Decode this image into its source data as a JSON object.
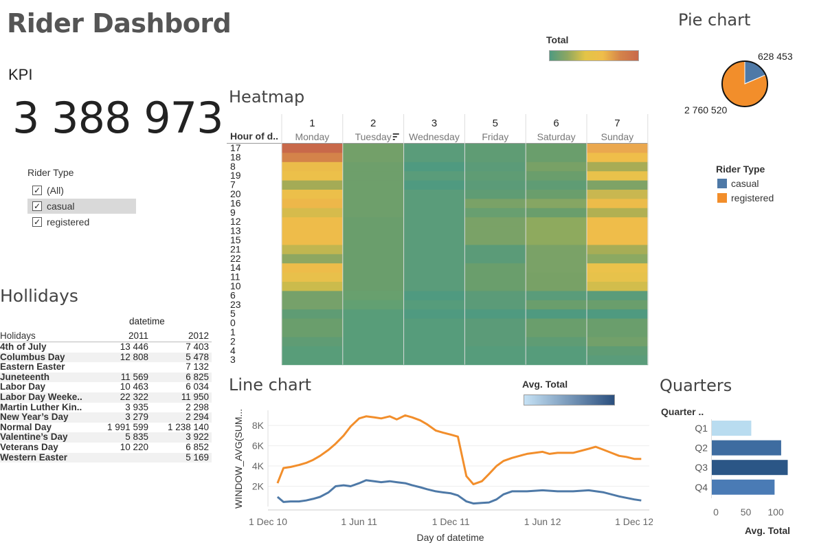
{
  "dashboard": {
    "title": "Rider Dashbord"
  },
  "kpi": {
    "label": "KPI",
    "value": "3 388 973"
  },
  "rider_filter": {
    "title": "Rider Type",
    "items": [
      {
        "label": "(All)",
        "checked": true,
        "highlighted": false
      },
      {
        "label": "casual",
        "checked": true,
        "highlighted": true
      },
      {
        "label": "registered",
        "checked": true,
        "highlighted": false
      }
    ]
  },
  "holidays": {
    "title": "Hollidays",
    "col_group": "datetime",
    "row_header": "Holidays",
    "years": [
      "2011",
      "2012"
    ],
    "rows": [
      {
        "name": "4th of July",
        "v2011": "13 446",
        "v2012": "7 403"
      },
      {
        "name": "Columbus Day",
        "v2011": "12 808",
        "v2012": "5 478"
      },
      {
        "name": "Eastern Easter",
        "v2011": "",
        "v2012": "7 132"
      },
      {
        "name": "Juneteenth",
        "v2011": "11 569",
        "v2012": "6 825"
      },
      {
        "name": "Labor Day",
        "v2011": "10 463",
        "v2012": "6 034"
      },
      {
        "name": "Labor Day Weeke..",
        "v2011": "22 322",
        "v2012": "11 950"
      },
      {
        "name": "Martin Luther Kin..",
        "v2011": "3 935",
        "v2012": "2 298"
      },
      {
        "name": "New Year’s Day",
        "v2011": "3 279",
        "v2012": "2 294"
      },
      {
        "name": "Normal Day",
        "v2011": "1 991 599",
        "v2012": "1 238 140"
      },
      {
        "name": "Valentine’s Day",
        "v2011": "5 835",
        "v2012": "3 922"
      },
      {
        "name": "Veterans Day",
        "v2011": "10 220",
        "v2012": "6 852"
      },
      {
        "name": "Western Easter",
        "v2011": "",
        "v2012": "5 169"
      }
    ]
  },
  "total_legend": {
    "title": "Total"
  },
  "heatmap": {
    "title": "Heatmap",
    "row_header": "Hour of d..",
    "days": [
      {
        "num": "1",
        "name": "Monday"
      },
      {
        "num": "2",
        "name": "Tuesday"
      },
      {
        "num": "3",
        "name": "Wednesday"
      },
      {
        "num": "5",
        "name": "Friday"
      },
      {
        "num": "6",
        "name": "Saturday"
      },
      {
        "num": "7",
        "name": "Sunday"
      }
    ],
    "hours": [
      "17",
      "18",
      "8",
      "19",
      "7",
      "20",
      "16",
      "9",
      "12",
      "13",
      "15",
      "21",
      "22",
      "14",
      "11",
      "10",
      "6",
      "23",
      "5",
      "0",
      "1",
      "2",
      "4",
      "3"
    ],
    "colors": [
      [
        "#c8694a",
        "#73a069",
        "#5a9c7a",
        "#5f9c74",
        "#6a9e6c",
        "#eaa84f"
      ],
      [
        "#d4834a",
        "#73a069",
        "#5a9c7a",
        "#5f9c74",
        "#6a9e6c",
        "#efbe4a"
      ],
      [
        "#ebbc4a",
        "#6e9f6b",
        "#4f9a80",
        "#5b9b78",
        "#78a166",
        "#a8ac55"
      ],
      [
        "#ecc04a",
        "#6e9f6b",
        "#5a9c7a",
        "#5f9c74",
        "#6a9e6c",
        "#e9c24b"
      ],
      [
        "#a4ab56",
        "#6e9f6b",
        "#4f9a80",
        "#5b9b78",
        "#5f9c74",
        "#7ea366"
      ],
      [
        "#ecbf4a",
        "#6e9f6b",
        "#5a9c7a",
        "#5f9c74",
        "#6a9e6c",
        "#c9b750"
      ],
      [
        "#edb74a",
        "#6e9f6b",
        "#5a9c7a",
        "#7aa267",
        "#86a663",
        "#ecbc4a"
      ],
      [
        "#d6bb4c",
        "#6e9f6b",
        "#5a9c7a",
        "#689f70",
        "#6a9e6c",
        "#b1b052"
      ],
      [
        "#eebc4a",
        "#6a9e6c",
        "#5a9c7a",
        "#7aa267",
        "#8eaa5e",
        "#efbd4a"
      ],
      [
        "#eebc4a",
        "#6a9e6c",
        "#5a9c7a",
        "#7aa267",
        "#8eaa5e",
        "#efbd4a"
      ],
      [
        "#eebc4a",
        "#6a9e6c",
        "#5a9c7a",
        "#7aa267",
        "#8eaa5e",
        "#efbd4a"
      ],
      [
        "#c1b650",
        "#6a9e6c",
        "#5a9c7a",
        "#5b9b78",
        "#7aa267",
        "#a7ad56"
      ],
      [
        "#8ea761",
        "#6a9e6c",
        "#5a9c7a",
        "#5b9b78",
        "#7aa267",
        "#8ca962"
      ],
      [
        "#edbc4a",
        "#6a9e6c",
        "#5a9c7a",
        "#6a9e6c",
        "#7aa267",
        "#ebc24b"
      ],
      [
        "#e8c04b",
        "#6a9e6c",
        "#5a9c7a",
        "#6a9e6c",
        "#78a166",
        "#e7c24b"
      ],
      [
        "#cbbb4c",
        "#6a9e6c",
        "#5a9c7a",
        "#6a9e6c",
        "#78a166",
        "#d2bd4c"
      ],
      [
        "#76a16a",
        "#68a06e",
        "#4f9a80",
        "#5b9b78",
        "#5a9c7a",
        "#5a9c7a"
      ],
      [
        "#76a16a",
        "#62a072",
        "#569c7b",
        "#5b9b78",
        "#6a9e6c",
        "#6a9e6c"
      ],
      [
        "#5f9c74",
        "#589d79",
        "#4f9a80",
        "#4f9a80",
        "#4f9a80",
        "#4f9a80"
      ],
      [
        "#6a9e6c",
        "#589d79",
        "#569c7b",
        "#5b9b78",
        "#6a9e6c",
        "#6a9e6c"
      ],
      [
        "#6a9e6c",
        "#589d79",
        "#569c7b",
        "#5b9b78",
        "#6a9e6c",
        "#6a9e6c"
      ],
      [
        "#5f9c74",
        "#589d79",
        "#569c7b",
        "#5b9b78",
        "#5f9c74",
        "#72a06a"
      ],
      [
        "#589d79",
        "#589d79",
        "#569c7b",
        "#569c7b",
        "#569c7b",
        "#5f9c74"
      ],
      [
        "#589d79",
        "#589d79",
        "#569c7b",
        "#569c7b",
        "#569c7b",
        "#5a9c7a"
      ]
    ]
  },
  "pie": {
    "title": "Pie chart",
    "chart_data": {
      "type": "pie",
      "slices": [
        {
          "label": "casual",
          "value": 628453,
          "value_text": "628 453",
          "color": "#4e79a7"
        },
        {
          "label": "registered",
          "value": 2760520,
          "value_text": "2 760 520",
          "color": "#f28e2b"
        }
      ]
    }
  },
  "rider_legend": {
    "title": "Rider Type",
    "items": [
      {
        "label": "casual",
        "color": "#4e79a7"
      },
      {
        "label": "registered",
        "color": "#f28e2b"
      }
    ]
  },
  "line_chart": {
    "title": "Line chart",
    "legend_title": "Avg. Total",
    "ylabel": "WINDOW_AVG(SUM...",
    "xlabel": "Day of datetime",
    "chart_data": {
      "type": "line",
      "x_ticks": [
        "1 Dec 10",
        "1 Jun 11",
        "1 Dec 11",
        "1 Jun 12",
        "1 Dec 12"
      ],
      "y_ticks": [
        "2K",
        "4K",
        "6K",
        "8K"
      ],
      "x_range": [
        "2010-12-01",
        "2012-12-31"
      ],
      "ylim": [
        0,
        9500
      ],
      "series": [
        {
          "name": "registered",
          "color": "#f28e2b",
          "points": [
            [
              "2010-12-20",
              2300
            ],
            [
              "2011-01-01",
              3800
            ],
            [
              "2011-01-15",
              3900
            ],
            [
              "2011-02-01",
              4100
            ],
            [
              "2011-02-15",
              4300
            ],
            [
              "2011-03-01",
              4600
            ],
            [
              "2011-03-15",
              5000
            ],
            [
              "2011-04-01",
              5600
            ],
            [
              "2011-04-15",
              6200
            ],
            [
              "2011-05-01",
              7000
            ],
            [
              "2011-05-15",
              7900
            ],
            [
              "2011-06-01",
              8700
            ],
            [
              "2011-06-15",
              8900
            ],
            [
              "2011-07-01",
              8800
            ],
            [
              "2011-07-15",
              8700
            ],
            [
              "2011-08-01",
              8900
            ],
            [
              "2011-08-15",
              8600
            ],
            [
              "2011-09-01",
              9000
            ],
            [
              "2011-09-15",
              8800
            ],
            [
              "2011-10-01",
              8500
            ],
            [
              "2011-10-15",
              8100
            ],
            [
              "2011-11-01",
              7500
            ],
            [
              "2011-11-15",
              7300
            ],
            [
              "2011-12-01",
              7100
            ],
            [
              "2011-12-15",
              6900
            ],
            [
              "2012-01-01",
              3000
            ],
            [
              "2012-01-15",
              2200
            ],
            [
              "2012-02-01",
              2500
            ],
            [
              "2012-02-15",
              3200
            ],
            [
              "2012-03-01",
              4000
            ],
            [
              "2012-03-15",
              4500
            ],
            [
              "2012-04-01",
              4800
            ],
            [
              "2012-05-01",
              5200
            ],
            [
              "2012-06-01",
              5400
            ],
            [
              "2012-06-15",
              5200
            ],
            [
              "2012-07-01",
              5300
            ],
            [
              "2012-08-01",
              5300
            ],
            [
              "2012-09-01",
              5700
            ],
            [
              "2012-09-15",
              5900
            ],
            [
              "2012-10-01",
              5600
            ],
            [
              "2012-11-01",
              5000
            ],
            [
              "2012-11-15",
              4900
            ],
            [
              "2012-12-01",
              4700
            ],
            [
              "2012-12-15",
              4700
            ]
          ]
        },
        {
          "name": "casual",
          "color": "#4e79a7",
          "points": [
            [
              "2010-12-20",
              950
            ],
            [
              "2011-01-01",
              450
            ],
            [
              "2011-01-15",
              500
            ],
            [
              "2011-02-01",
              500
            ],
            [
              "2011-02-15",
              600
            ],
            [
              "2011-03-01",
              750
            ],
            [
              "2011-03-15",
              950
            ],
            [
              "2011-04-01",
              1400
            ],
            [
              "2011-04-15",
              2000
            ],
            [
              "2011-05-01",
              2100
            ],
            [
              "2011-05-15",
              2000
            ],
            [
              "2011-06-01",
              2300
            ],
            [
              "2011-06-15",
              2600
            ],
            [
              "2011-07-01",
              2500
            ],
            [
              "2011-07-15",
              2400
            ],
            [
              "2011-08-01",
              2500
            ],
            [
              "2011-08-15",
              2400
            ],
            [
              "2011-09-01",
              2300
            ],
            [
              "2011-09-15",
              2100
            ],
            [
              "2011-10-01",
              1900
            ],
            [
              "2011-10-15",
              1700
            ],
            [
              "2011-11-01",
              1500
            ],
            [
              "2011-11-15",
              1400
            ],
            [
              "2011-12-01",
              1300
            ],
            [
              "2011-12-15",
              1100
            ],
            [
              "2012-01-01",
              500
            ],
            [
              "2012-01-15",
              300
            ],
            [
              "2012-02-01",
              350
            ],
            [
              "2012-02-15",
              400
            ],
            [
              "2012-03-01",
              700
            ],
            [
              "2012-03-15",
              1200
            ],
            [
              "2012-04-01",
              1500
            ],
            [
              "2012-05-01",
              1500
            ],
            [
              "2012-06-01",
              1600
            ],
            [
              "2012-07-01",
              1500
            ],
            [
              "2012-08-01",
              1500
            ],
            [
              "2012-09-01",
              1600
            ],
            [
              "2012-10-01",
              1400
            ],
            [
              "2012-11-01",
              1000
            ],
            [
              "2012-12-01",
              700
            ],
            [
              "2012-12-15",
              600
            ]
          ]
        }
      ]
    }
  },
  "quarters": {
    "title": "Quarters",
    "col_header": "Quarter ..",
    "xlabel": "Avg. Total",
    "chart_data": {
      "type": "bar",
      "orientation": "horizontal",
      "categories": [
        "Q1",
        "Q2",
        "Q3",
        "Q4"
      ],
      "values": [
        66,
        116,
        127,
        105
      ],
      "colors": [
        "#b9dcf0",
        "#3e6ca0",
        "#2b5686",
        "#4a7bb5"
      ],
      "x_ticks": [
        "0",
        "50",
        "100"
      ],
      "xlim": [
        0,
        130
      ]
    }
  },
  "avg_legend": {
    "title": "Avg. Total"
  }
}
